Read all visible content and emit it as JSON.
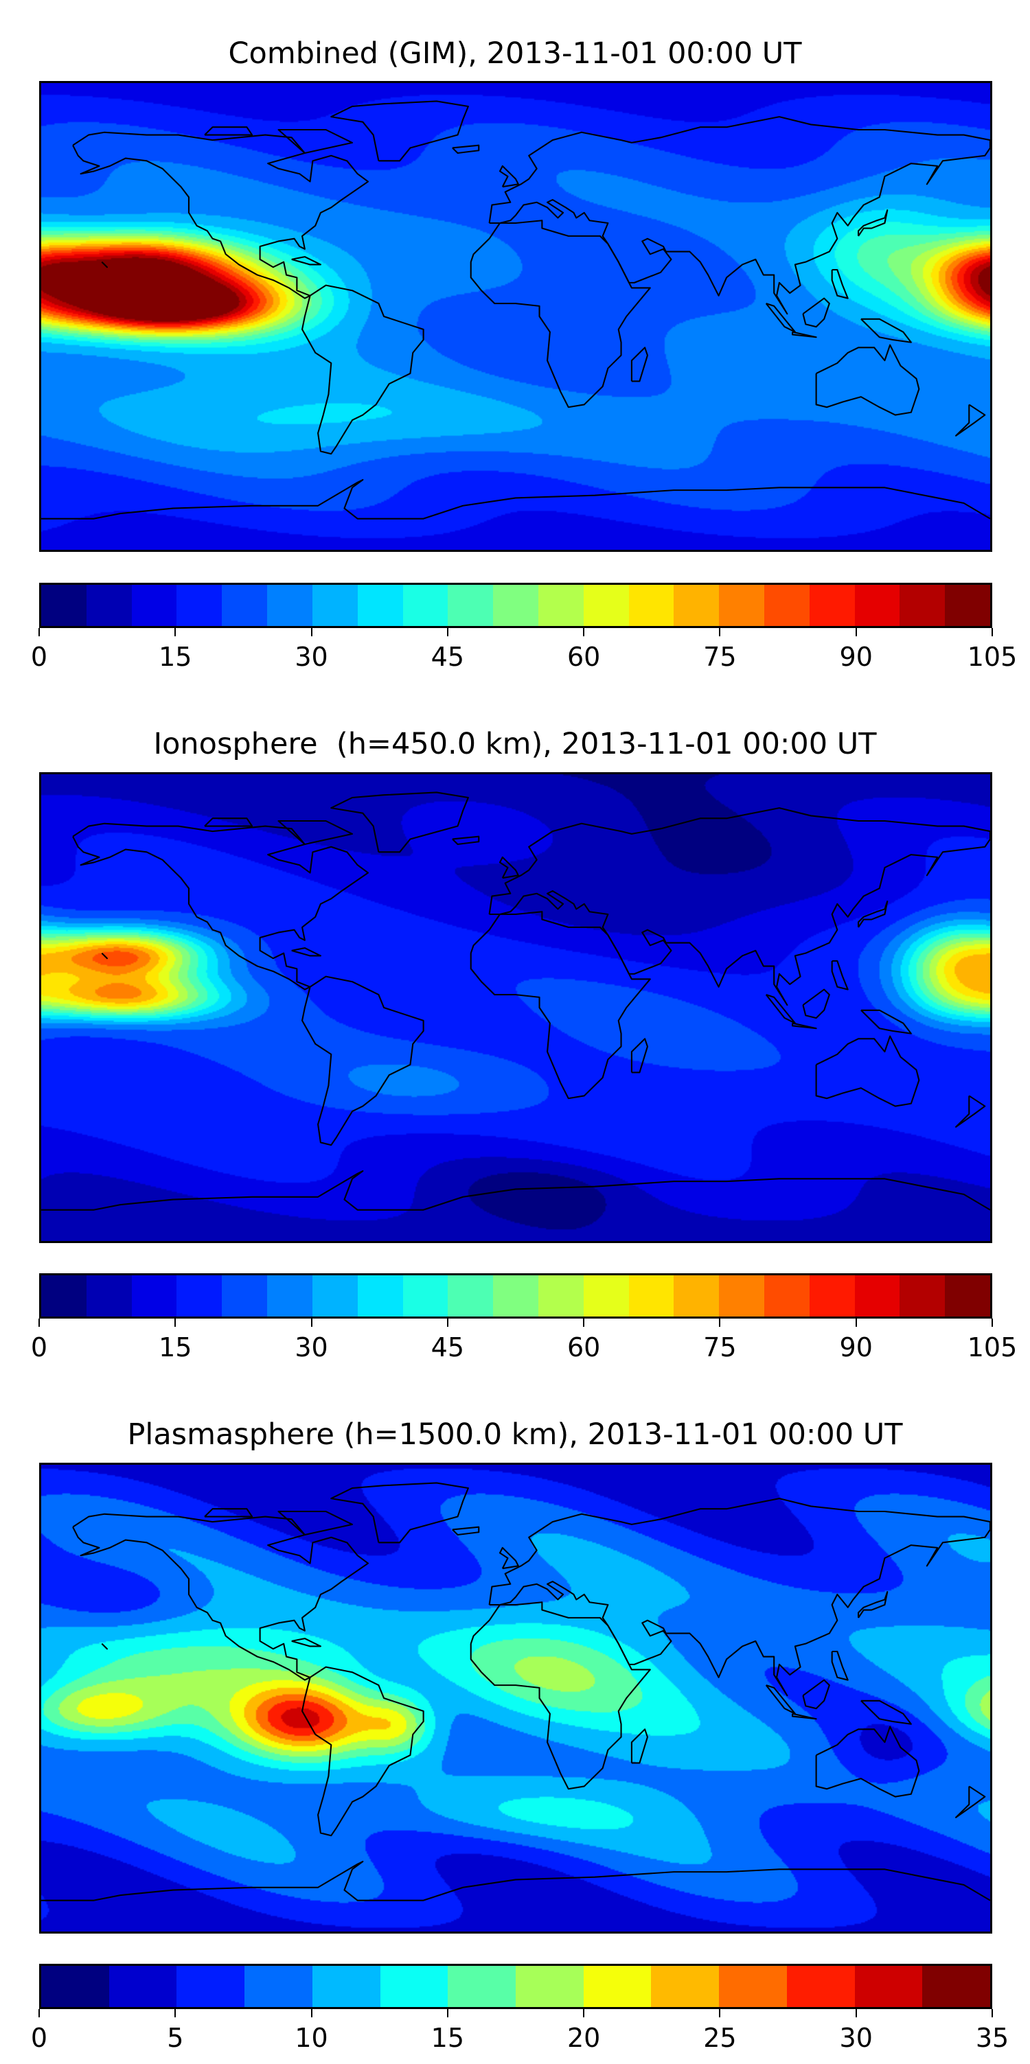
{
  "panels": [
    {
      "title": "Combined (GIM), 2013-11-01 00:00 UT",
      "colorbar": {
        "min": 0,
        "max": 105,
        "step": 5,
        "ticks": [
          "0",
          "15",
          "30",
          "45",
          "60",
          "75",
          "90",
          "105"
        ]
      }
    },
    {
      "title": "Ionosphere  (h=450.0 km), 2013-11-01 00:00 UT",
      "colorbar": {
        "min": 0,
        "max": 105,
        "step": 5,
        "ticks": [
          "0",
          "15",
          "30",
          "45",
          "60",
          "75",
          "90",
          "105"
        ]
      }
    },
    {
      "title": "Plasmasphere (h=1500.0 km), 2013-11-01 00:00 UT",
      "colorbar": {
        "min": 0,
        "max": 35,
        "step": 2.5,
        "ticks": [
          "0",
          "5",
          "10",
          "15",
          "20",
          "25",
          "30",
          "35"
        ]
      }
    }
  ],
  "chart_data": [
    {
      "type": "heatmap",
      "title": "Combined (GIM), 2013-11-01 00:00 UT",
      "projection": "equirectangular",
      "lon_range": [
        -180,
        180
      ],
      "lat_range": [
        -90,
        90
      ],
      "levels": [
        0,
        105,
        5
      ],
      "colormap": "jet",
      "field_estimate": {
        "base_equator": 30,
        "base_pole": 12,
        "features": [
          {
            "lon": -145,
            "lat": 20,
            "value": 65,
            "sx": 25,
            "sy": 8
          },
          {
            "lon": -140,
            "lat": 3,
            "value": 72,
            "sx": 30,
            "sy": 7
          },
          {
            "lon": -110,
            "lat": 10,
            "value": 35,
            "sx": 25,
            "sy": 10
          },
          {
            "lon": 178,
            "lat": 15,
            "value": 45,
            "sx": 15,
            "sy": 10
          },
          {
            "lon": 140,
            "lat": 25,
            "value": 18,
            "sx": 20,
            "sy": 15
          },
          {
            "lon": 30,
            "lat": 0,
            "value": -10,
            "sx": 40,
            "sy": 25
          },
          {
            "lon": -60,
            "lat": -40,
            "value": 10,
            "sx": 60,
            "sy": 10
          }
        ]
      }
    },
    {
      "type": "heatmap",
      "title": "Ionosphere  (h=450.0 km), 2013-11-01 00:00 UT",
      "projection": "equirectangular",
      "lon_range": [
        -180,
        180
      ],
      "lat_range": [
        -90,
        90
      ],
      "levels": [
        0,
        105,
        5
      ],
      "colormap": "jet",
      "field_estimate": {
        "base_equator": 20,
        "base_pole": 6,
        "features": [
          {
            "lon": -150,
            "lat": 20,
            "value": 60,
            "sx": 22,
            "sy": 7
          },
          {
            "lon": -150,
            "lat": 4,
            "value": 50,
            "sx": 25,
            "sy": 6
          },
          {
            "lon": 168,
            "lat": 15,
            "value": 40,
            "sx": 15,
            "sy": 12
          },
          {
            "lon": 50,
            "lat": 45,
            "value": -12,
            "sx": 50,
            "sy": 20
          },
          {
            "lon": -40,
            "lat": -30,
            "value": 8,
            "sx": 30,
            "sy": 10
          },
          {
            "lon": 10,
            "lat": -70,
            "value": -8,
            "sx": 25,
            "sy": 8
          }
        ]
      }
    },
    {
      "type": "heatmap",
      "title": "Plasmasphere (h=1500.0 km), 2013-11-01 00:00 UT",
      "projection": "equirectangular",
      "lon_range": [
        -180,
        180
      ],
      "lat_range": [
        -90,
        90
      ],
      "levels": [
        0,
        35,
        2.5
      ],
      "colormap": "jet",
      "field_estimate": {
        "base_equator": 10,
        "base_pole": 4,
        "features": [
          {
            "lon": -80,
            "lat": -8,
            "value": 19,
            "sx": 18,
            "sy": 10
          },
          {
            "lon": -160,
            "lat": -5,
            "value": 12,
            "sx": 20,
            "sy": 8
          },
          {
            "lon": -45,
            "lat": -10,
            "value": 10,
            "sx": 10,
            "sy": 8
          },
          {
            "lon": 10,
            "lat": 10,
            "value": 6,
            "sx": 30,
            "sy": 15
          },
          {
            "lon": -100,
            "lat": 15,
            "value": 6,
            "sx": 40,
            "sy": 12
          },
          {
            "lon": -150,
            "lat": 40,
            "value": -3,
            "sx": 20,
            "sy": 10
          },
          {
            "lon": 140,
            "lat": -20,
            "value": -4,
            "sx": 15,
            "sy": 10
          },
          {
            "lon": 0,
            "lat": -45,
            "value": 4,
            "sx": 40,
            "sy": 8
          }
        ]
      }
    }
  ]
}
